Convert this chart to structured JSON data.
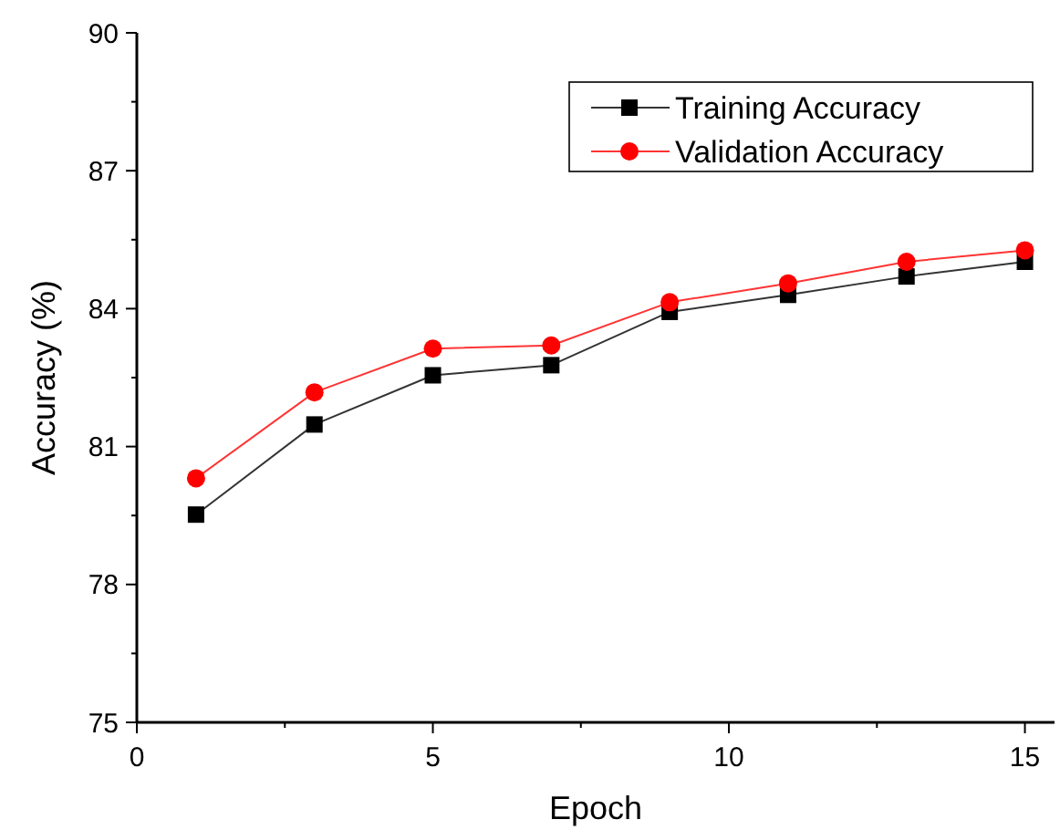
{
  "chart_data": {
    "type": "line",
    "xlabel": "Epoch",
    "ylabel": "Accuracy (%)",
    "x": [
      1,
      3,
      5,
      7,
      9,
      11,
      13,
      15
    ],
    "series": [
      {
        "name": "Training Accuracy",
        "color": "#000000",
        "marker": "square",
        "values": [
          79.52,
          81.48,
          82.55,
          82.77,
          83.93,
          84.3,
          84.7,
          85.02
        ]
      },
      {
        "name": "Validation Accuracy",
        "color": "#ff0000",
        "marker": "circle",
        "values": [
          80.31,
          82.18,
          83.13,
          83.2,
          84.14,
          84.55,
          85.02,
          85.27
        ]
      }
    ],
    "xlim": [
      0,
      15.5
    ],
    "xticks": [
      0,
      {
        "value": 2.5,
        "label": null
      },
      5,
      {
        "value": 7.5,
        "label": null
      },
      10,
      {
        "value": 12.5,
        "label": null
      },
      15
    ],
    "ylim": [
      75,
      90
    ],
    "yticks": [
      75,
      {
        "value": 76.5,
        "label": null
      },
      78,
      {
        "value": 79.5,
        "label": null
      },
      81,
      {
        "value": 82.5,
        "label": null
      },
      84,
      {
        "value": 85.5,
        "label": null
      },
      87,
      {
        "value": 88.5,
        "label": null
      },
      90
    ],
    "legend": "top right",
    "grid": false
  }
}
